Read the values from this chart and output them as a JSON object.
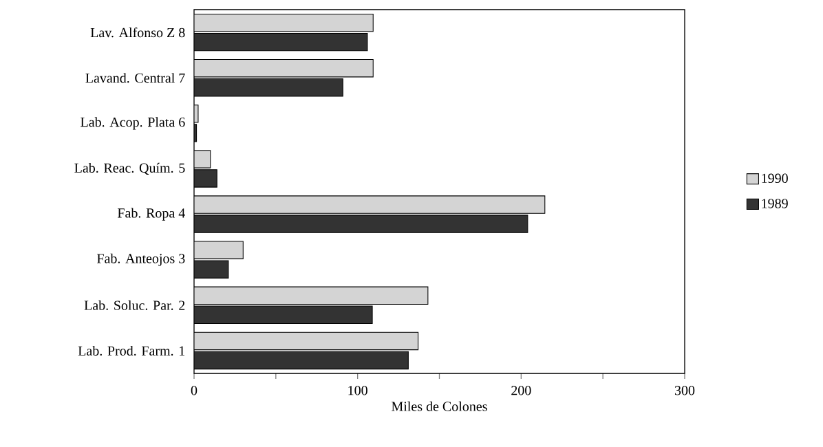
{
  "chart_data": {
    "type": "bar",
    "orientation": "horizontal",
    "xlabel": "Miles de Colones",
    "categories": [
      "Lav. Alfonso Z   8",
      "Lavand. Central   7",
      "Lab. Acop. Plata   6",
      "Lab. Reac. Quím.   5",
      "Fab. Ropa   4",
      "Fab. Anteojos   3",
      "Lab. Soluc. Par.   2",
      "Lab. Prod. Farm.   1"
    ],
    "series": [
      {
        "name": "1990",
        "color": "#d4d4d4",
        "values": [
          109.5,
          109.5,
          2.5,
          10,
          214.5,
          30,
          143,
          137
        ]
      },
      {
        "name": "1989",
        "color": "#333333",
        "values": [
          106,
          91,
          1.5,
          14,
          204,
          21,
          109,
          131
        ]
      }
    ],
    "xlim": [
      0,
      300
    ],
    "xticks": [
      0,
      {
        "value": 50,
        "label": null
      },
      100,
      {
        "value": 150,
        "label": null
      },
      200,
      {
        "value": 250,
        "label": null
      },
      300
    ],
    "legend": "right",
    "grid": false
  }
}
